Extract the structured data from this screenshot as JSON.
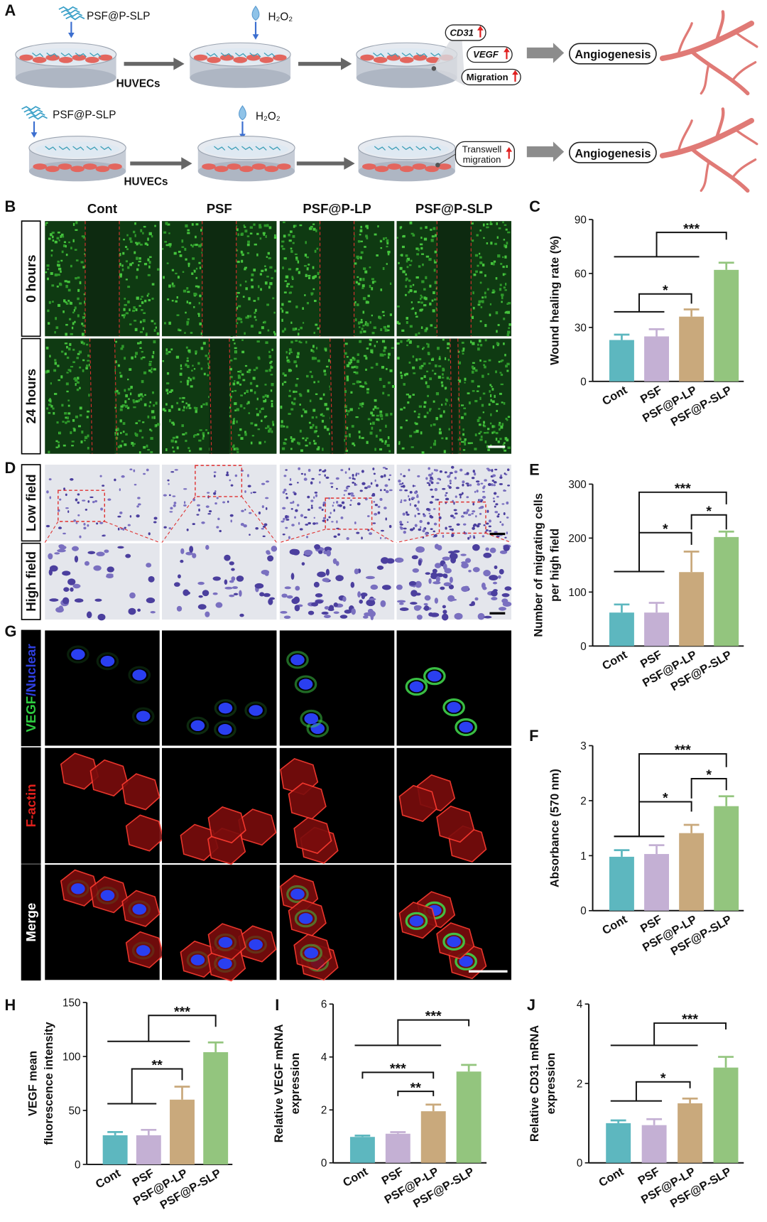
{
  "figure": {
    "schematic": {
      "panel": "A",
      "row1": {
        "reagent": "PSF@P-SLP",
        "oxidant": "H₂O₂",
        "cells": "HUVECs",
        "markers": [
          "CD31",
          "VEGF",
          "Migration"
        ],
        "outcome": "Angiogenesis"
      },
      "row2": {
        "reagent": "PSF@P-SLP",
        "oxidant": "H₂O₂",
        "cells": "HUVECs",
        "marker_lines": [
          "Transwell",
          "migration"
        ],
        "outcome": "Angiogenesis"
      }
    },
    "micrographs": {
      "groups": [
        "Cont",
        "PSF",
        "PSF@P-LP",
        "PSF@P-SLP"
      ],
      "wound": {
        "panel": "B",
        "rows": [
          "0 hours",
          "24 hours"
        ]
      },
      "transwell": {
        "panel": "D",
        "rows": [
          "Low field",
          "High field"
        ]
      },
      "staining": {
        "panel": "G",
        "rows": [
          [
            "VEGF",
            "/Nuclear"
          ],
          "F-actin",
          "Merge"
        ]
      }
    }
  },
  "chart_data": [
    {
      "type": "bar",
      "panel": "C",
      "ylabel": [
        "Wound healing rate (%)"
      ],
      "categories": [
        "Cont",
        "PSF",
        "PSF@P-LP",
        "PSF@P-SLP"
      ],
      "values": [
        23,
        25,
        36,
        62
      ],
      "errors": [
        3,
        4,
        4,
        4
      ],
      "colors": [
        "#5db7bf",
        "#c4b0d4",
        "#c9a97c",
        "#93c57e"
      ],
      "ylim": [
        0,
        90
      ],
      "yticks": [
        0,
        30,
        60,
        90
      ],
      "annotations": [
        "***",
        "*"
      ]
    },
    {
      "type": "bar",
      "panel": "E",
      "ylabel": [
        "Number of migrating cells",
        "per high field"
      ],
      "categories": [
        "Cont",
        "PSF",
        "PSF@P-LP",
        "PSF@P-SLP"
      ],
      "values": [
        62,
        62,
        137,
        202
      ],
      "errors": [
        15,
        18,
        38,
        10
      ],
      "colors": [
        "#5db7bf",
        "#c4b0d4",
        "#c9a97c",
        "#93c57e"
      ],
      "ylim": [
        0,
        300
      ],
      "yticks": [
        0,
        100,
        200,
        300
      ],
      "annotations": [
        "***",
        "*",
        "*"
      ]
    },
    {
      "type": "bar",
      "panel": "F",
      "ylabel": [
        "Absorbance (570 nm)"
      ],
      "categories": [
        "Cont",
        "PSF",
        "PSF@P-LP",
        "PSF@P-SLP"
      ],
      "values": [
        0.98,
        1.03,
        1.41,
        1.9
      ],
      "errors": [
        0.12,
        0.16,
        0.15,
        0.18
      ],
      "colors": [
        "#5db7bf",
        "#c4b0d4",
        "#c9a97c",
        "#93c57e"
      ],
      "ylim": [
        0,
        3
      ],
      "yticks": [
        0,
        1,
        2,
        3
      ],
      "annotations": [
        "***",
        "*",
        "*"
      ]
    },
    {
      "type": "bar",
      "panel": "H",
      "ylabel": [
        "VEGF mean",
        "fluorescence intensity"
      ],
      "categories": [
        "Cont",
        "PSF",
        "PSF@P-LP",
        "PSF@P-SLP"
      ],
      "values": [
        27,
        27,
        60,
        104
      ],
      "errors": [
        3,
        5,
        12,
        9
      ],
      "colors": [
        "#5db7bf",
        "#c4b0d4",
        "#c9a97c",
        "#93c57e"
      ],
      "ylim": [
        0,
        150
      ],
      "yticks": [
        0,
        50,
        100,
        150
      ],
      "annotations": [
        "***",
        "**"
      ]
    },
    {
      "type": "bar",
      "panel": "I",
      "ylabel": [
        "Relative VEGF mRNA",
        "expression"
      ],
      "categories": [
        "Cont",
        "PSF",
        "PSF@P-LP",
        "PSF@P-SLP"
      ],
      "values": [
        0.98,
        1.1,
        1.95,
        3.45
      ],
      "errors": [
        0.05,
        0.06,
        0.25,
        0.25
      ],
      "colors": [
        "#5db7bf",
        "#c4b0d4",
        "#c9a97c",
        "#93c57e"
      ],
      "ylim": [
        0,
        6
      ],
      "yticks": [
        0,
        2,
        4,
        6
      ],
      "annotations": [
        "***",
        "***",
        "**"
      ]
    },
    {
      "type": "bar",
      "panel": "J",
      "ylabel": [
        "Relative CD31 mRNA",
        "expression"
      ],
      "categories": [
        "Cont",
        "PSF",
        "PSF@P-LP",
        "PSF@P-SLP"
      ],
      "values": [
        1.0,
        0.95,
        1.5,
        2.4
      ],
      "errors": [
        0.07,
        0.15,
        0.12,
        0.27
      ],
      "colors": [
        "#5db7bf",
        "#c4b0d4",
        "#c9a97c",
        "#93c57e"
      ],
      "ylim": [
        0,
        4
      ],
      "yticks": [
        0,
        2,
        4
      ],
      "annotations": [
        "***",
        "*"
      ]
    }
  ]
}
